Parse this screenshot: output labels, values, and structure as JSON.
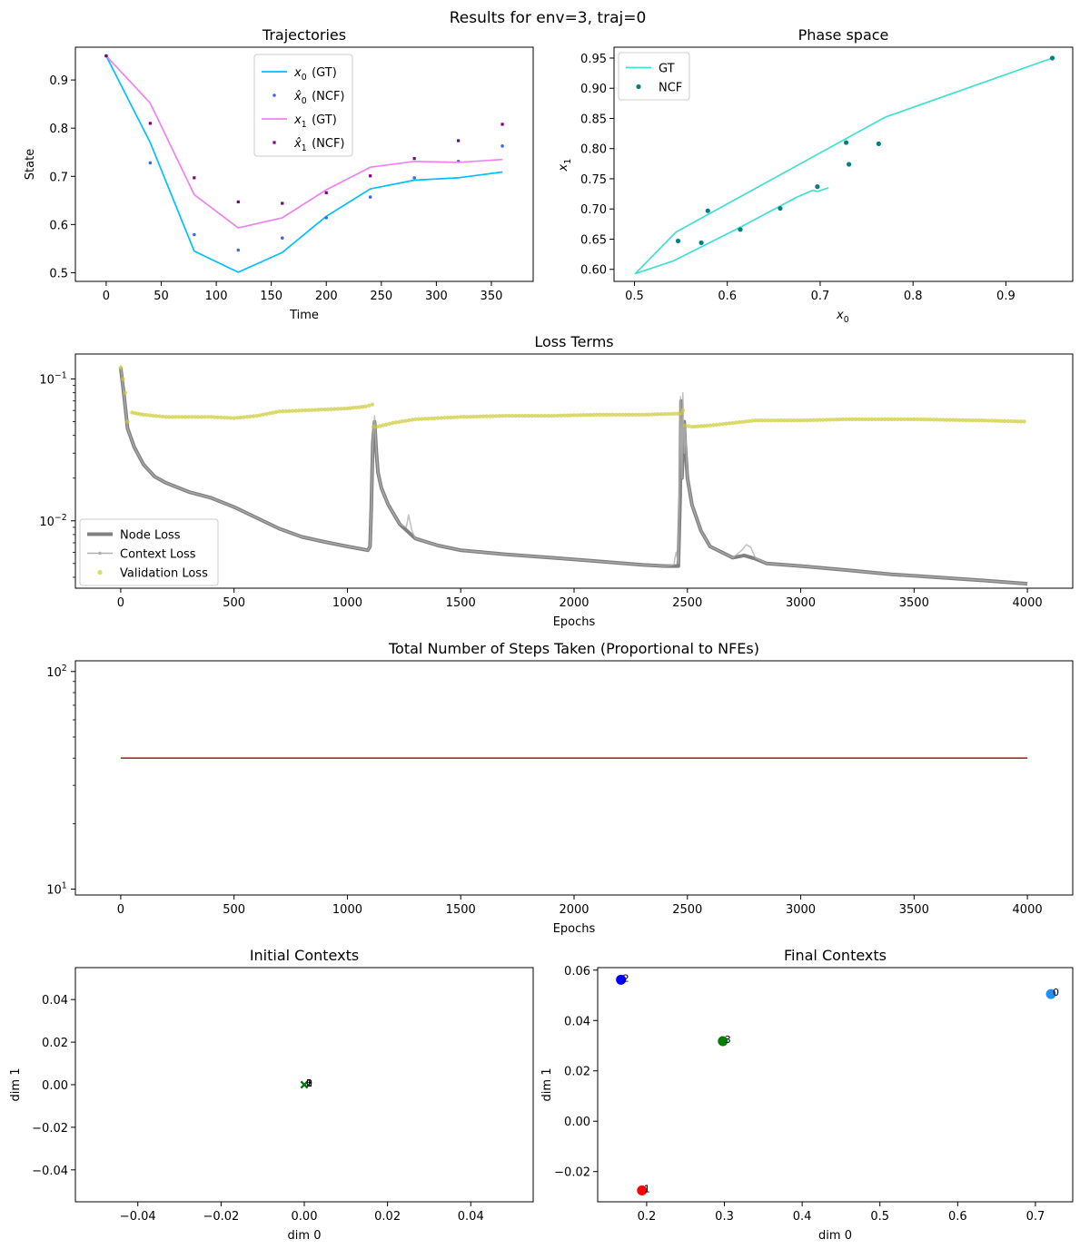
{
  "suptitle": "Results for env=3, traj=0",
  "colors": {
    "x0_gt": "#00bfff",
    "x0_ncf": "#4169e1",
    "x1_gt": "#ee82ee",
    "x1_ncf": "#800080",
    "phase_gt": "#40e0d0",
    "phase_ncf": "#008080",
    "node_loss": "#808080",
    "context_loss": "#b0b0b0",
    "val_loss": "#cccc33",
    "nsteps": "#a52a2a"
  },
  "chart_data": [
    {
      "id": "traj",
      "type": "line",
      "title": "Trajectories",
      "xlabel": "Time",
      "ylabel": "State",
      "xlim": [
        -28,
        388
      ],
      "ylim": [
        0.482,
        0.968
      ],
      "xticks": [
        0,
        50,
        100,
        150,
        200,
        250,
        300,
        350
      ],
      "yticks": [
        0.5,
        0.6,
        0.7,
        0.8,
        0.9
      ],
      "legend": {
        "position": "upper center",
        "entries": [
          "$x_0$ (GT)",
          "$\\hat{x}_0$ (NCF)",
          "$x_1$ (GT)",
          "$\\hat{x}_1$ (NCF)"
        ]
      },
      "x": [
        0,
        40,
        80,
        120,
        160,
        200,
        240,
        280,
        320,
        360
      ],
      "series": [
        {
          "name": "$x_0$ (GT)",
          "style": "line",
          "color": "x0_gt",
          "values": [
            0.95,
            0.77,
            0.545,
            0.501,
            0.542,
            0.617,
            0.674,
            0.692,
            0.697,
            0.709
          ]
        },
        {
          "name": "$\\hat{x}_0$ (NCF)",
          "style": "dots",
          "color": "x0_ncf",
          "values": [
            0.95,
            0.728,
            0.579,
            0.547,
            0.572,
            0.614,
            0.657,
            0.697,
            0.731,
            0.763
          ]
        },
        {
          "name": "$x_1$ (GT)",
          "style": "line",
          "color": "x1_gt",
          "values": [
            0.95,
            0.852,
            0.662,
            0.593,
            0.614,
            0.672,
            0.719,
            0.731,
            0.729,
            0.735
          ]
        },
        {
          "name": "$\\hat{x}_1$ (NCF)",
          "style": "squares",
          "color": "x1_ncf",
          "values": [
            0.95,
            0.81,
            0.697,
            0.647,
            0.644,
            0.666,
            0.701,
            0.737,
            0.774,
            0.808
          ]
        }
      ]
    },
    {
      "id": "phase",
      "type": "scatter",
      "title": "Phase space",
      "xlabel": "$x_0$",
      "ylabel": "$x_1$",
      "xlim": [
        0.478,
        0.972
      ],
      "ylim": [
        0.58,
        0.968
      ],
      "xticks": [
        0.5,
        0.6,
        0.7,
        0.8,
        0.9
      ],
      "yticks": [
        0.6,
        0.65,
        0.7,
        0.75,
        0.8,
        0.85,
        0.9,
        0.95
      ],
      "legend": {
        "position": "upper left",
        "entries": [
          "GT",
          "NCF"
        ]
      },
      "series": [
        {
          "name": "GT",
          "style": "line",
          "color": "phase_gt",
          "x": [
            0.95,
            0.77,
            0.545,
            0.501,
            0.542,
            0.617,
            0.674,
            0.692,
            0.697,
            0.709
          ],
          "y": [
            0.95,
            0.852,
            0.662,
            0.593,
            0.614,
            0.672,
            0.719,
            0.731,
            0.729,
            0.735
          ]
        },
        {
          "name": "NCF",
          "style": "dots",
          "color": "phase_ncf",
          "x": [
            0.95,
            0.728,
            0.579,
            0.547,
            0.572,
            0.614,
            0.657,
            0.697,
            0.731,
            0.763
          ],
          "y": [
            0.95,
            0.81,
            0.697,
            0.647,
            0.644,
            0.666,
            0.701,
            0.737,
            0.774,
            0.808
          ]
        }
      ]
    },
    {
      "id": "loss",
      "type": "line",
      "title": "Loss Terms",
      "xlabel": "Epochs",
      "ylabel": "",
      "xlim": [
        -200,
        4200
      ],
      "ylim": [
        0.00335,
        0.15
      ],
      "yscale": "log",
      "xticks": [
        0,
        500,
        1000,
        1500,
        2000,
        2500,
        3000,
        3500,
        4000
      ],
      "yticks": [
        0.01,
        0.1
      ],
      "ytick_labels": [
        "$10^{-2}$",
        "$10^{-1}$"
      ],
      "legend": {
        "position": "lower left",
        "entries": [
          "Node Loss",
          "Context Loss",
          "Validation Loss"
        ]
      },
      "series": [
        {
          "name": "Node Loss",
          "style": "line",
          "color": "node_loss",
          "x": [
            0,
            15,
            30,
            60,
            100,
            150,
            200,
            300,
            400,
            500,
            600,
            700,
            800,
            900,
            1000,
            1090,
            1100,
            1105,
            1112,
            1120,
            1128,
            1135,
            1150,
            1180,
            1230,
            1300,
            1400,
            1500,
            1700,
            1900,
            2100,
            2300,
            2400,
            2460,
            2468,
            2472,
            2476,
            2480,
            2486,
            2490,
            2500,
            2520,
            2560,
            2600,
            2700,
            2750,
            2800,
            2850,
            3000,
            3200,
            3400,
            3600,
            3800,
            4000
          ],
          "y": [
            0.12,
            0.075,
            0.045,
            0.033,
            0.025,
            0.0205,
            0.0185,
            0.016,
            0.0145,
            0.0125,
            0.0105,
            0.0088,
            0.0077,
            0.0071,
            0.0066,
            0.0062,
            0.0066,
            0.012,
            0.035,
            0.05,
            0.03,
            0.022,
            0.017,
            0.013,
            0.0095,
            0.0075,
            0.0067,
            0.0062,
            0.0058,
            0.0055,
            0.0052,
            0.0049,
            0.0048,
            0.0048,
            0.015,
            0.07,
            0.02,
            0.03,
            0.05,
            0.035,
            0.02,
            0.013,
            0.0085,
            0.0066,
            0.0055,
            0.0057,
            0.0054,
            0.005,
            0.0048,
            0.0045,
            0.0042,
            0.004,
            0.0038,
            0.0036
          ]
        },
        {
          "name": "Context Loss",
          "style": "thin",
          "color": "context_loss",
          "x": [
            0,
            15,
            30,
            60,
            100,
            150,
            200,
            300,
            400,
            500,
            600,
            700,
            800,
            900,
            1000,
            1090,
            1100,
            1105,
            1112,
            1120,
            1128,
            1135,
            1150,
            1180,
            1230,
            1260,
            1270,
            1285,
            1300,
            1400,
            1500,
            1700,
            1900,
            2100,
            2300,
            2400,
            2440,
            2450,
            2460,
            2466,
            2470,
            2476,
            2480,
            2486,
            2490,
            2500,
            2520,
            2560,
            2600,
            2700,
            2740,
            2760,
            2780,
            2800,
            2850,
            3000,
            3200,
            3400,
            3600,
            3800,
            4000
          ],
          "y": [
            0.125,
            0.075,
            0.045,
            0.033,
            0.025,
            0.0205,
            0.0185,
            0.016,
            0.0145,
            0.0125,
            0.0105,
            0.0088,
            0.0077,
            0.0071,
            0.0066,
            0.0062,
            0.0066,
            0.012,
            0.035,
            0.055,
            0.03,
            0.022,
            0.017,
            0.013,
            0.0095,
            0.009,
            0.011,
            0.0085,
            0.0075,
            0.0067,
            0.0062,
            0.0058,
            0.0055,
            0.0052,
            0.0049,
            0.0048,
            0.0049,
            0.006,
            0.005,
            0.02,
            0.075,
            0.02,
            0.08,
            0.03,
            0.045,
            0.02,
            0.013,
            0.0085,
            0.0066,
            0.0055,
            0.0062,
            0.0068,
            0.0065,
            0.0055,
            0.005,
            0.0048,
            0.0045,
            0.0042,
            0.004,
            0.0038,
            0.0036
          ]
        },
        {
          "name": "Validation Loss",
          "style": "dots",
          "color": "val_loss",
          "x": [
            0,
            10,
            20,
            30,
            50,
            100,
            200,
            300,
            400,
            500,
            600,
            700,
            800,
            900,
            1000,
            1080,
            1110,
            1115,
            1130,
            1200,
            1300,
            1500,
            1700,
            1900,
            2100,
            2300,
            2470,
            2480,
            2490,
            2520,
            2600,
            2700,
            2800,
            3000,
            3200,
            3500,
            3800,
            4000
          ],
          "y": [
            0.12,
            0.1,
            0.08,
            0.05,
            0.058,
            0.056,
            0.054,
            0.054,
            0.054,
            0.053,
            0.055,
            0.059,
            0.06,
            0.061,
            0.062,
            0.064,
            0.066,
            0.046,
            0.046,
            0.049,
            0.052,
            0.054,
            0.055,
            0.055,
            0.056,
            0.056,
            0.057,
            0.06,
            0.047,
            0.046,
            0.047,
            0.049,
            0.051,
            0.051,
            0.052,
            0.052,
            0.051,
            0.05
          ]
        }
      ]
    },
    {
      "id": "nfe",
      "type": "line",
      "title": "Total Number of Steps Taken (Proportional to NFEs)",
      "xlabel": "Epochs",
      "ylabel": "",
      "xlim": [
        -200,
        4200
      ],
      "ylim": [
        9.4,
        112
      ],
      "yscale": "log",
      "xticks": [
        0,
        500,
        1000,
        1500,
        2000,
        2500,
        3000,
        3500,
        4000
      ],
      "yticks": [
        10,
        100
      ],
      "ytick_labels": [
        "$10^{1}$",
        "$10^{2}$"
      ],
      "series": [
        {
          "name": "",
          "style": "line",
          "color": "nsteps",
          "x": [
            0,
            4000
          ],
          "y": [
            40,
            40
          ]
        }
      ]
    },
    {
      "id": "init",
      "type": "scatter",
      "title": "Initial Contexts",
      "xlabel": "dim 0",
      "ylabel": "dim 1",
      "xlim": [
        -0.055,
        0.055
      ],
      "ylim": [
        -0.055,
        0.055
      ],
      "xticks": [
        -0.04,
        -0.02,
        0.0,
        0.02,
        0.04
      ],
      "yticks": [
        -0.04,
        -0.02,
        0.0,
        0.02,
        0.04
      ],
      "points": [
        {
          "label": "0",
          "x": 0.0,
          "y": 0.0,
          "color": "#1e90ff"
        },
        {
          "label": "1",
          "x": 0.0,
          "y": 0.0,
          "color": "#ff0000"
        },
        {
          "label": "2",
          "x": 0.0,
          "y": 0.0,
          "color": "#0000ff"
        },
        {
          "label": "3",
          "x": 0.0,
          "y": 0.0,
          "color": "#008000"
        }
      ],
      "marker": "x"
    },
    {
      "id": "final",
      "type": "scatter",
      "title": "Final Contexts",
      "xlabel": "dim 0",
      "ylabel": "dim 1",
      "xlim": [
        0.137,
        0.748
      ],
      "ylim": [
        -0.032,
        0.061
      ],
      "xticks": [
        0.2,
        0.3,
        0.4,
        0.5,
        0.6,
        0.7
      ],
      "yticks": [
        -0.02,
        0.0,
        0.02,
        0.04,
        0.06
      ],
      "points": [
        {
          "label": "0",
          "x": 0.72,
          "y": 0.0505,
          "color": "#1e90ff"
        },
        {
          "label": "1",
          "x": 0.194,
          "y": -0.0275,
          "color": "#ff0000"
        },
        {
          "label": "2",
          "x": 0.167,
          "y": 0.0562,
          "color": "#0000ff"
        },
        {
          "label": "3",
          "x": 0.298,
          "y": 0.0318,
          "color": "#008000"
        }
      ],
      "marker": "o"
    }
  ]
}
